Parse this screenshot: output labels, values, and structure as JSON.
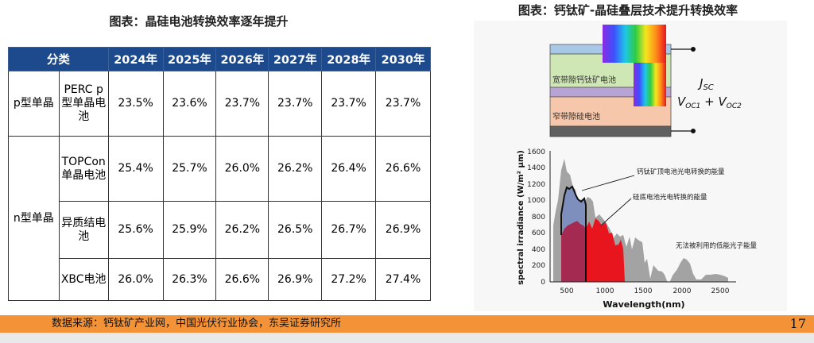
{
  "left_title": "图表：晶硅电池转换效率逐年提升",
  "right_title": "图表：钙钛矿-晶硅叠层技术提升转换效率",
  "table": {
    "headers": [
      "分类",
      "2024年",
      "2025年",
      "2026年",
      "2027年",
      "2028年",
      "2030年"
    ],
    "groups": [
      {
        "name": "p型单晶",
        "rows": [
          {
            "label": "PERC p型单晶电池",
            "values": [
              "23.5%",
              "23.6%",
              "23.7%",
              "23.7%",
              "23.7%",
              "23.7%"
            ]
          }
        ]
      },
      {
        "name": "n型单晶",
        "rows": [
          {
            "label": "TOPCon单晶电池",
            "values": [
              "25.4%",
              "25.7%",
              "26.0%",
              "26.2%",
              "26.4%",
              "26.6%"
            ]
          },
          {
            "label": "异质结电池",
            "values": [
              "25.6%",
              "25.9%",
              "26.2%",
              "26.5%",
              "26.7%",
              "26.9%"
            ]
          },
          {
            "label": "XBC电池",
            "values": [
              "26.0%",
              "26.3%",
              "26.6%",
              "26.9%",
              "27.2%",
              "27.4%"
            ]
          }
        ]
      }
    ]
  },
  "diagram": {
    "top_layer_label": "宽带隙钙钛矿电池",
    "bottom_layer_label": "窄带隙硅电池",
    "jsc_label": "J",
    "jsc_sub": "SC",
    "voc_label": "V",
    "voc1_sub": "OC1",
    "voc_plus": " + V",
    "voc2_sub": "OC2"
  },
  "spectrum": {
    "ylabel": "spectral irradiance (W/m² μm)",
    "xlabel": "Wavelength(nm)",
    "y_ticks": [
      "1600",
      "1400",
      "1200",
      "1000",
      "800",
      "600",
      "400",
      "200",
      "0"
    ],
    "x_ticks": [
      "500",
      "1000",
      "1500",
      "2000",
      "2500"
    ],
    "annotations": {
      "perovskite": "钙钛矿顶电池光电转换的能量",
      "silicon": "硅底电池光电转换的能量",
      "unused": "无法被利用的低能光子能量"
    },
    "colors": {
      "perovskite": "#7e8fbe",
      "silicon": "#e8141e",
      "unused": "#a3a3a3",
      "overlap": "#a52a52"
    }
  },
  "footer": {
    "source": "数据来源：钙钛矿产业网，中国光伏行业协会，东吴证券研究所",
    "page_number": "17",
    "accent_color": "#f39237"
  }
}
